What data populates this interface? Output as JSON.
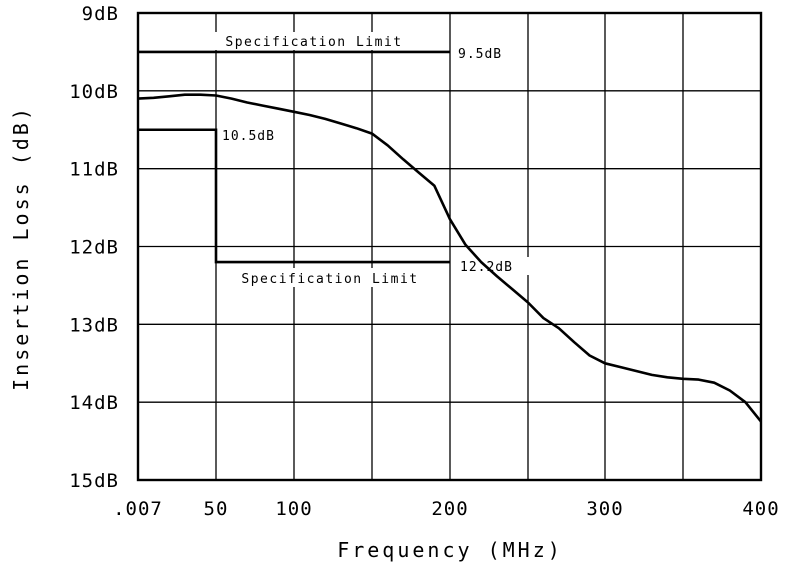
{
  "chart_data": {
    "type": "line",
    "title": "",
    "xlabel": "Frequency (MHz)",
    "ylabel": "Insertion Loss (dB)",
    "x_tick_labels": [
      ".007",
      "50",
      "100",
      "200",
      "300",
      "400"
    ],
    "x_ticks": [
      0.007,
      50,
      100,
      200,
      300,
      400
    ],
    "xlim": [
      0.007,
      400
    ],
    "y_tick_labels": [
      "9dB",
      "10dB",
      "11dB",
      "12dB",
      "13dB",
      "14dB",
      "15dB"
    ],
    "y_ticks": [
      9,
      10,
      11,
      12,
      13,
      14,
      15
    ],
    "ylim": [
      9,
      15
    ],
    "y_inverted": true,
    "grid": true,
    "series": [
      {
        "name": "",
        "x": [
          0.007,
          10,
          20,
          30,
          40,
          50,
          60,
          70,
          80,
          90,
          100,
          110,
          120,
          130,
          140,
          150,
          160,
          170,
          180,
          190,
          200,
          210,
          220,
          230,
          240,
          250,
          260,
          270,
          280,
          290,
          300,
          310,
          320,
          330,
          340,
          350,
          360,
          370,
          380,
          390,
          400
        ],
        "y": [
          10.1,
          10.09,
          10.07,
          10.05,
          10.05,
          10.06,
          10.1,
          10.15,
          10.19,
          10.23,
          10.27,
          10.31,
          10.36,
          10.42,
          10.48,
          10.55,
          10.7,
          10.88,
          11.05,
          11.22,
          11.65,
          11.98,
          12.2,
          12.38,
          12.55,
          12.72,
          12.92,
          13.05,
          13.23,
          13.4,
          13.5,
          13.55,
          13.6,
          13.65,
          13.68,
          13.7,
          13.71,
          13.75,
          13.85,
          14.0,
          14.25
        ]
      }
    ],
    "spec_limits": [
      {
        "label": "Specification Limit",
        "value_label": "9.5dB",
        "y": 9.5,
        "x": [
          0.007,
          200
        ]
      },
      {
        "label": "Specification Limit",
        "value_label": "10.5dB",
        "y": 10.5,
        "x": [
          0.007,
          50
        ]
      },
      {
        "label": "Specification Limit",
        "value_label": "12.2dB",
        "y": 12.2,
        "x": [
          50,
          200
        ]
      }
    ]
  }
}
